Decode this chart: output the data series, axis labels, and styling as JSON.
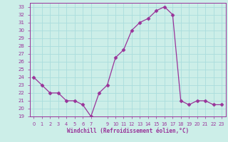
{
  "x": [
    0,
    1,
    2,
    3,
    4,
    5,
    6,
    7,
    8,
    9,
    10,
    11,
    12,
    13,
    14,
    15,
    16,
    17,
    18,
    19,
    20,
    21,
    22,
    23
  ],
  "y": [
    24,
    23,
    22,
    22,
    21,
    21,
    20.5,
    19,
    22,
    23,
    26.5,
    27.5,
    30,
    31,
    31.5,
    32.5,
    33,
    32,
    21,
    20.5,
    21,
    21,
    20.5,
    20.5
  ],
  "line_color": "#993399",
  "marker": "D",
  "marker_size": 2.5,
  "bg_color": "#cceee8",
  "grid_color": "#aadddd",
  "xlabel": "Windchill (Refroidissement éolien,°C)",
  "xlabel_color": "#993399",
  "tick_color": "#993399",
  "label_color": "#993399",
  "ylim": [
    19,
    33.5
  ],
  "xlim": [
    -0.5,
    23.5
  ],
  "yticks": [
    19,
    20,
    21,
    22,
    23,
    24,
    25,
    26,
    27,
    28,
    29,
    30,
    31,
    32,
    33
  ],
  "xticks": [
    0,
    1,
    2,
    3,
    4,
    5,
    6,
    7,
    9,
    10,
    11,
    12,
    13,
    14,
    15,
    16,
    17,
    18,
    19,
    20,
    21,
    22,
    23
  ],
  "xtick_labels": [
    "0",
    "1",
    "2",
    "3",
    "4",
    "5",
    "6",
    "7",
    "9",
    "10",
    "11",
    "12",
    "13",
    "14",
    "15",
    "16",
    "17",
    "18",
    "19",
    "20",
    "21",
    "22",
    "23"
  ]
}
